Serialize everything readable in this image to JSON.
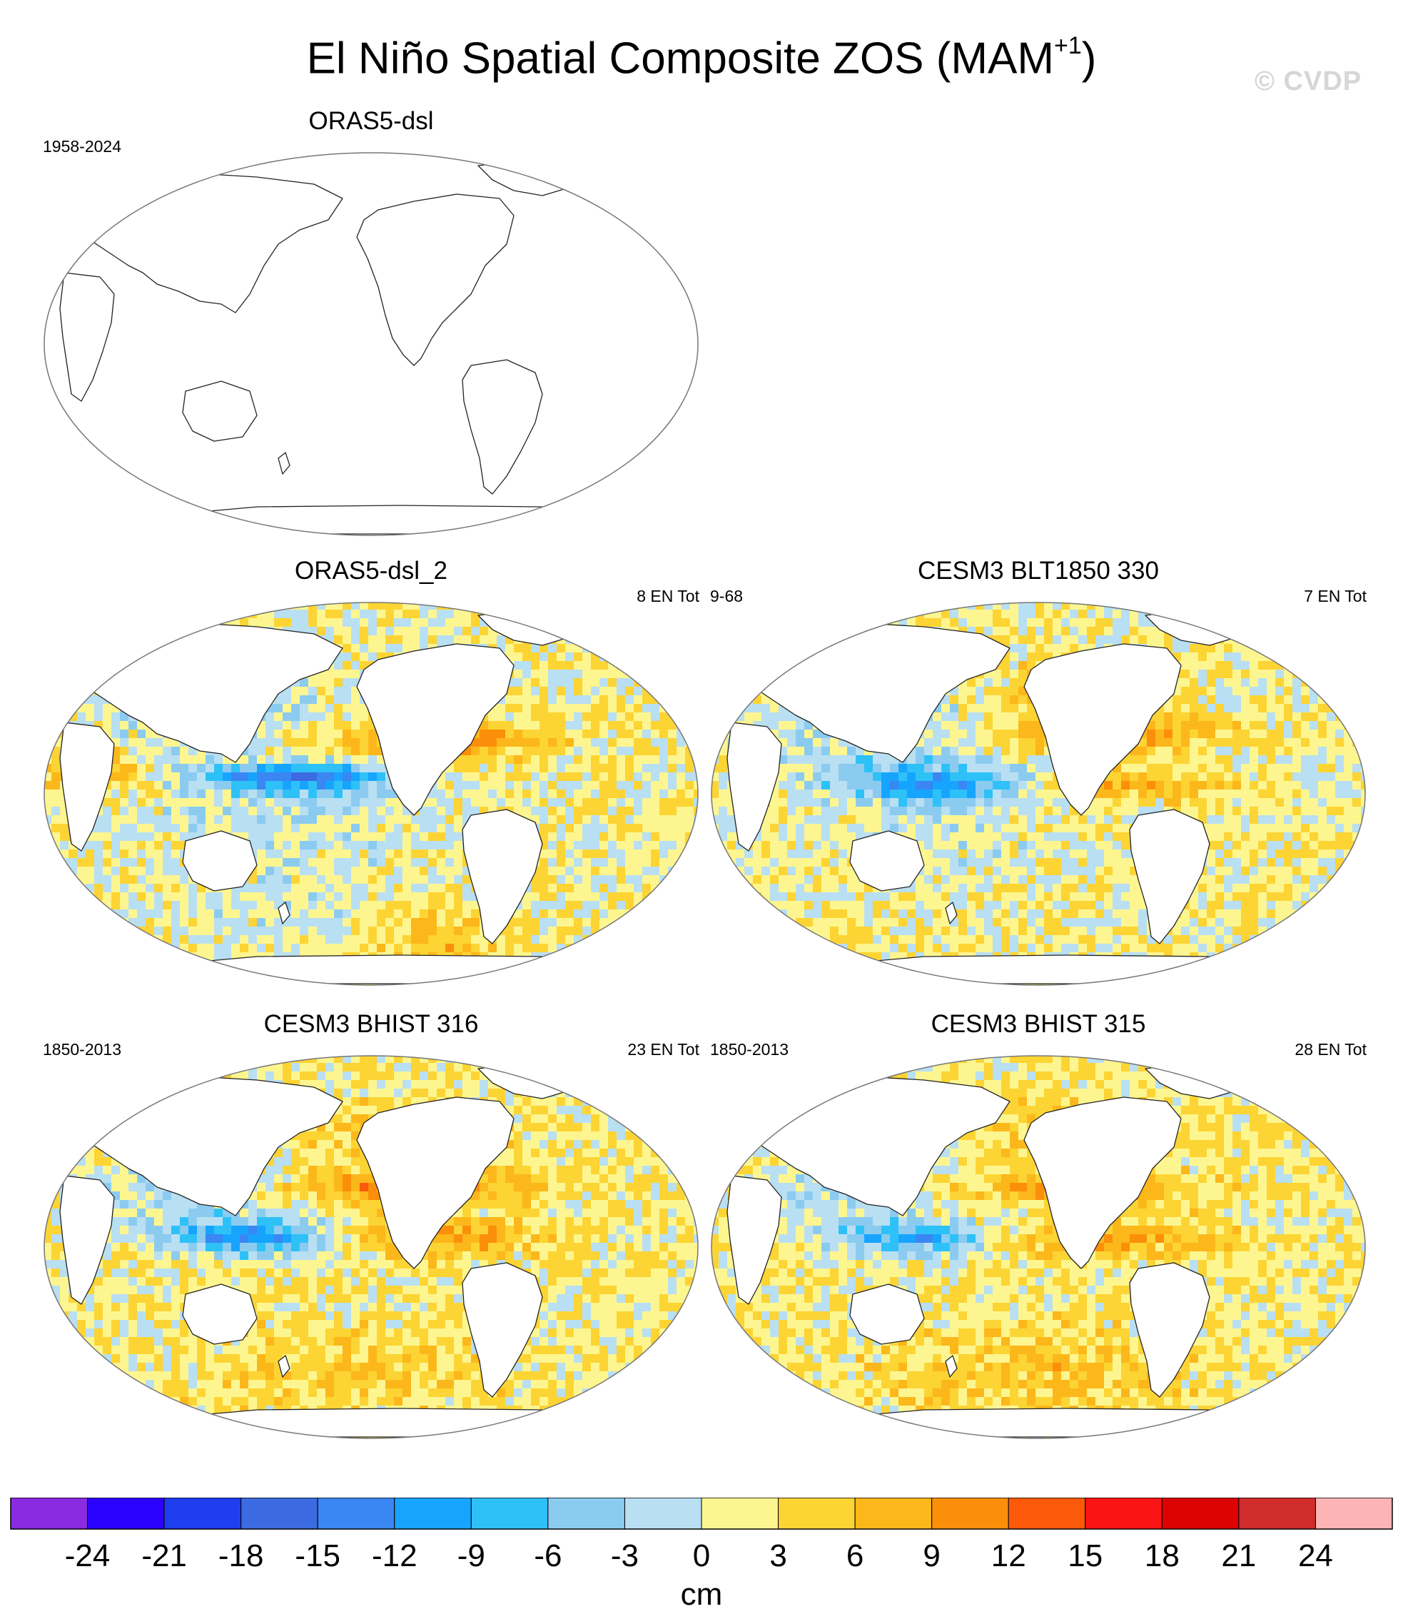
{
  "title": "El Niño Spatial Composite ZOS (MAM",
  "title_sup": "+1",
  "title_end": ")",
  "watermark": "© CVDP",
  "chart_data": [
    {
      "type": "heatmap",
      "title": "ORAS5-dsl",
      "years": "1958-2024",
      "count": "",
      "has_data": false
    },
    {
      "type": "heatmap",
      "title": "ORAS5-dsl_2",
      "years": "",
      "count": "8 EN Tot",
      "has_data": true,
      "pattern": "obs"
    },
    {
      "type": "heatmap",
      "title": "CESM3 BLT1850 330",
      "years": "9-68",
      "count": "7 EN Tot",
      "has_data": true,
      "pattern": "blt"
    },
    {
      "type": "heatmap",
      "title": "CESM3 BHIST 316",
      "years": "1850-2013",
      "count": "23 EN Tot",
      "has_data": true,
      "pattern": "hist"
    },
    {
      "type": "heatmap",
      "title": "CESM3 BHIST 315",
      "years": "1850-2013",
      "count": "28 EN Tot",
      "has_data": true,
      "pattern": "hist2"
    }
  ],
  "colorbar": {
    "labels": [
      "-24",
      "-21",
      "-18",
      "-15",
      "-12",
      "-9",
      "-6",
      "-3",
      "0",
      "3",
      "6",
      "9",
      "12",
      "15",
      "18",
      "21",
      "24"
    ],
    "colors": [
      "#8a2be2",
      "#2a00ff",
      "#1e3ef0",
      "#3c6ae0",
      "#3a86f2",
      "#16a4ff",
      "#2ec1f7",
      "#8ccbf0",
      "#b9dff2",
      "#fdf690",
      "#fcd434",
      "#fcb71a",
      "#fc8f0a",
      "#fc5a0a",
      "#fc1414",
      "#dd0303",
      "#d02c2c",
      "#fcb4b4"
    ],
    "unit": "cm"
  }
}
